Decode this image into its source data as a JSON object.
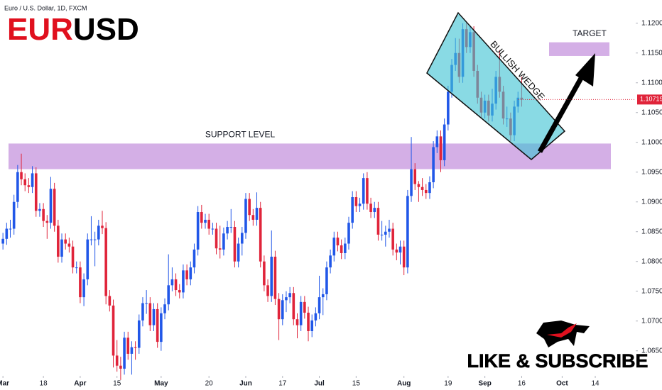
{
  "chart_data": {
    "type": "candlestick",
    "symbol_info": "Euro / U.S. Dollar, 1D, FXCM",
    "title_parts": [
      "EUR",
      "USD"
    ],
    "up_color": "#2157e8",
    "down_color": "#e0243a",
    "candles": [
      [
        1.083,
        1.0848,
        1.082,
        1.0838
      ],
      [
        1.0838,
        1.0865,
        1.0828,
        1.0855
      ],
      [
        1.0855,
        1.087,
        1.084,
        1.0855
      ],
      [
        1.0855,
        1.0912,
        1.0845,
        1.09
      ],
      [
        1.09,
        1.0962,
        1.089,
        1.095
      ],
      [
        1.095,
        1.0981,
        1.0928,
        1.0938
      ],
      [
        1.0938,
        1.0948,
        1.0918,
        1.0928
      ],
      [
        1.0928,
        1.094,
        1.0915,
        1.0925
      ],
      [
        1.0925,
        1.096,
        1.0915,
        1.0948
      ],
      [
        1.0948,
        1.0958,
        1.0875,
        1.0885
      ],
      [
        1.0885,
        1.0898,
        1.0875,
        1.0888
      ],
      [
        1.0888,
        1.0898,
        1.0858,
        1.0868
      ],
      [
        1.0868,
        1.0878,
        1.0838,
        1.0865
      ],
      [
        1.0865,
        1.0942,
        1.0855,
        1.0922
      ],
      [
        1.0922,
        1.0932,
        1.085,
        1.086
      ],
      [
        1.086,
        1.087,
        1.0798,
        1.0808
      ],
      [
        1.0808,
        1.0847,
        1.0798,
        1.0837
      ],
      [
        1.0837,
        1.0847,
        1.082,
        1.083
      ],
      [
        1.083,
        1.084,
        1.0815,
        1.0825
      ],
      [
        1.0825,
        1.0835,
        1.078,
        1.079
      ],
      [
        1.079,
        1.08,
        1.078,
        1.079
      ],
      [
        1.079,
        1.08,
        1.073,
        1.074
      ],
      [
        1.074,
        1.078,
        1.0725,
        1.077
      ],
      [
        1.077,
        1.0847,
        1.076,
        1.0837
      ],
      [
        1.0837,
        1.0876,
        1.0827,
        1.0837
      ],
      [
        1.0837,
        1.085,
        1.0792,
        1.0837
      ],
      [
        1.0837,
        1.087,
        1.0827,
        1.086
      ],
      [
        1.086,
        1.0885,
        1.0846,
        1.0856
      ],
      [
        1.0856,
        1.0866,
        1.0728,
        1.0742
      ],
      [
        1.0742,
        1.0752,
        1.0716,
        1.0726
      ],
      [
        1.0726,
        1.0736,
        1.0622,
        1.0642
      ],
      [
        1.0642,
        1.0668,
        1.0615,
        1.0625
      ],
      [
        1.0625,
        1.064,
        1.0601,
        1.062
      ],
      [
        1.062,
        1.0682,
        1.061,
        1.0672
      ],
      [
        1.0672,
        1.0682,
        1.0635,
        1.0645
      ],
      [
        1.0645,
        1.0666,
        1.061,
        1.0656
      ],
      [
        1.0656,
        1.0666,
        1.0635,
        1.0655
      ],
      [
        1.0655,
        1.0711,
        1.0645,
        1.0701
      ],
      [
        1.0701,
        1.074,
        1.0691,
        1.073
      ],
      [
        1.073,
        1.0752,
        1.0712,
        1.073
      ],
      [
        1.073,
        1.074,
        1.0683,
        1.0693
      ],
      [
        1.0693,
        1.073,
        1.0683,
        1.072
      ],
      [
        1.072,
        1.073,
        1.0655,
        1.0665
      ],
      [
        1.0665,
        1.0723,
        1.065,
        1.0713
      ],
      [
        1.0713,
        1.0738,
        1.0703,
        1.0728
      ],
      [
        1.0728,
        1.0812,
        1.0718,
        1.076
      ],
      [
        1.076,
        1.079,
        1.075,
        1.077
      ],
      [
        1.077,
        1.078,
        1.0742,
        1.0752
      ],
      [
        1.0752,
        1.0762,
        1.0738,
        1.0748
      ],
      [
        1.0748,
        1.0795,
        1.0738,
        1.0785
      ],
      [
        1.0785,
        1.0795,
        1.076,
        1.077
      ],
      [
        1.077,
        1.08,
        1.076,
        1.079
      ],
      [
        1.079,
        1.083,
        1.078,
        1.082
      ],
      [
        1.082,
        1.0893,
        1.081,
        1.0883
      ],
      [
        1.0883,
        1.0895,
        1.0855,
        1.0865
      ],
      [
        1.0865,
        1.088,
        1.0855,
        1.087
      ],
      [
        1.087,
        1.088,
        1.0845,
        1.0855
      ],
      [
        1.0855,
        1.0865,
        1.0845,
        1.0855
      ],
      [
        1.0855,
        1.0865,
        1.0812,
        1.0822
      ],
      [
        1.0822,
        1.086,
        1.0805,
        1.082
      ],
      [
        1.082,
        1.0857,
        1.081,
        1.0847
      ],
      [
        1.0847,
        1.0868,
        1.0837,
        1.0858
      ],
      [
        1.0858,
        1.0888,
        1.0848,
        1.0858
      ],
      [
        1.0858,
        1.0868,
        1.079,
        1.08
      ],
      [
        1.08,
        1.084,
        1.079,
        1.083
      ],
      [
        1.083,
        1.0858,
        1.081,
        1.0848
      ],
      [
        1.0848,
        1.0915,
        1.0838,
        1.0905
      ],
      [
        1.0905,
        1.0915,
        1.0868,
        1.0878
      ],
      [
        1.0878,
        1.0888,
        1.086,
        1.087
      ],
      [
        1.087,
        1.0916,
        1.086,
        1.089
      ],
      [
        1.089,
        1.09,
        1.079,
        1.08
      ],
      [
        1.08,
        1.081,
        1.075,
        1.076
      ],
      [
        1.076,
        1.077,
        1.0732,
        1.0742
      ],
      [
        1.0742,
        1.0852,
        1.0732,
        1.0808
      ],
      [
        1.0808,
        1.0818,
        1.0727,
        1.0737
      ],
      [
        1.0737,
        1.0747,
        1.0668,
        1.0703
      ],
      [
        1.0703,
        1.0745,
        1.0693,
        1.0735
      ],
      [
        1.0735,
        1.075,
        1.0715,
        1.074
      ],
      [
        1.074,
        1.0757,
        1.073,
        1.0747
      ],
      [
        1.0747,
        1.0757,
        1.0693,
        1.0703
      ],
      [
        1.0703,
        1.0713,
        1.0671,
        1.0693
      ],
      [
        1.0693,
        1.0742,
        1.0683,
        1.0732
      ],
      [
        1.0732,
        1.0742,
        1.0704,
        1.0714
      ],
      [
        1.0714,
        1.0724,
        1.0666,
        1.0683
      ],
      [
        1.0683,
        1.0711,
        1.0673,
        1.0701
      ],
      [
        1.0701,
        1.0723,
        1.0691,
        1.0713
      ],
      [
        1.0713,
        1.0776,
        1.0703,
        1.074
      ],
      [
        1.074,
        1.0755,
        1.071,
        1.0745
      ],
      [
        1.0745,
        1.08,
        1.0735,
        1.079
      ],
      [
        1.079,
        1.082,
        1.078,
        1.081
      ],
      [
        1.081,
        1.085,
        1.08,
        1.084
      ],
      [
        1.084,
        1.085,
        1.0817,
        1.0827
      ],
      [
        1.0827,
        1.0837,
        1.0804,
        1.0814
      ],
      [
        1.0814,
        1.084,
        1.0804,
        1.083
      ],
      [
        1.083,
        1.0875,
        1.082,
        1.0865
      ],
      [
        1.0865,
        1.0918,
        1.0855,
        1.0908
      ],
      [
        1.0908,
        1.0918,
        1.0883,
        1.0893
      ],
      [
        1.0893,
        1.0907,
        1.0883,
        1.0897
      ],
      [
        1.0897,
        1.0948,
        1.0887,
        1.094
      ],
      [
        1.094,
        1.095,
        1.0887,
        1.0897
      ],
      [
        1.0897,
        1.0907,
        1.0873,
        1.0883
      ],
      [
        1.0883,
        1.09,
        1.0873,
        1.089
      ],
      [
        1.089,
        1.09,
        1.0835,
        1.0845
      ],
      [
        1.0845,
        1.0868,
        1.0835,
        1.0845
      ],
      [
        1.0845,
        1.086,
        1.0825,
        1.085
      ],
      [
        1.085,
        1.087,
        1.084,
        1.0855
      ],
      [
        1.0855,
        1.0865,
        1.081,
        1.082
      ],
      [
        1.082,
        1.083,
        1.0802,
        1.0815
      ],
      [
        1.0815,
        1.0835,
        1.0795,
        1.0825
      ],
      [
        1.0825,
        1.0835,
        1.0777,
        1.079
      ],
      [
        1.079,
        1.092,
        1.078,
        1.091
      ],
      [
        1.091,
        1.1009,
        1.09,
        1.0955
      ],
      [
        1.0955,
        1.0965,
        1.092,
        1.093
      ],
      [
        1.093,
        1.0935,
        1.09,
        1.0925
      ],
      [
        1.0925,
        1.094,
        1.091,
        1.092
      ],
      [
        1.092,
        1.093,
        1.0905,
        1.0915
      ],
      [
        1.0915,
        1.0943,
        1.0905,
        1.0933
      ],
      [
        1.0933,
        1.1002,
        1.0923,
        1.0992
      ],
      [
        1.0992,
        1.102,
        1.0982,
        1.101
      ],
      [
        1.101,
        1.102,
        1.095,
        1.097
      ],
      [
        1.097,
        1.104,
        1.096,
        1.103
      ],
      [
        1.103,
        1.1095,
        1.102,
        1.1085
      ],
      [
        1.1085,
        1.114,
        1.1075,
        1.113
      ],
      [
        1.113,
        1.1175,
        1.112,
        1.115
      ],
      [
        1.115,
        1.1174,
        1.11,
        1.111
      ],
      [
        1.111,
        1.12,
        1.11,
        1.119
      ],
      [
        1.119,
        1.1202,
        1.115,
        1.116
      ],
      [
        1.116,
        1.1195,
        1.115,
        1.1185
      ],
      [
        1.1185,
        1.1195,
        1.111,
        1.112
      ],
      [
        1.112,
        1.113,
        1.1065,
        1.1075
      ],
      [
        1.1075,
        1.1085,
        1.104,
        1.105
      ],
      [
        1.105,
        1.108,
        1.104,
        1.107
      ],
      [
        1.107,
        1.108,
        1.1035,
        1.1045
      ],
      [
        1.1045,
        1.109,
        1.1035,
        1.1065
      ],
      [
        1.1065,
        1.112,
        1.1055,
        1.111
      ],
      [
        1.111,
        1.1155,
        1.1075,
        1.1085
      ],
      [
        1.1085,
        1.1095,
        1.103,
        1.104
      ],
      [
        1.104,
        1.106,
        1.1026,
        1.104
      ],
      [
        1.104,
        1.105,
        1.1002,
        1.1012
      ],
      [
        1.1012,
        1.107,
        1.1002,
        1.106
      ],
      [
        1.106,
        1.1085,
        1.105,
        1.1075
      ],
      [
        1.1075,
        1.111,
        1.106,
        1.1072
      ]
    ],
    "xlim": [
      -0.8,
      172
    ],
    "xticks": [
      {
        "value": 0,
        "label": "Mar"
      },
      {
        "value": 11,
        "label": "18"
      },
      {
        "value": 21,
        "label": "Apr"
      },
      {
        "value": 31,
        "label": "15"
      },
      {
        "value": 43,
        "label": "May"
      },
      {
        "value": 56,
        "label": "20"
      },
      {
        "value": 66,
        "label": "Jun"
      },
      {
        "value": 76,
        "label": "17"
      },
      {
        "value": 86,
        "label": "Jul"
      },
      {
        "value": 96,
        "label": "15"
      },
      {
        "value": 109,
        "label": "Aug"
      },
      {
        "value": 121,
        "label": "19"
      },
      {
        "value": 131,
        "label": "Sep"
      },
      {
        "value": 141,
        "label": "16"
      },
      {
        "value": 152,
        "label": "Oct"
      },
      {
        "value": 161,
        "label": "14"
      }
    ],
    "ylim": [
      1.0608,
      1.1239
    ],
    "yticks": [
      {
        "value": 1.12,
        "label": "1.12000"
      },
      {
        "value": 1.115,
        "label": "1.11500"
      },
      {
        "value": 1.11,
        "label": "1.11000"
      },
      {
        "value": 1.105,
        "label": "1.10500"
      },
      {
        "value": 1.1,
        "label": "1.10000"
      },
      {
        "value": 1.095,
        "label": "1.09500"
      },
      {
        "value": 1.09,
        "label": "1.09000"
      },
      {
        "value": 1.085,
        "label": "1.08500"
      },
      {
        "value": 1.08,
        "label": "1.08000"
      },
      {
        "value": 1.075,
        "label": "1.07500"
      },
      {
        "value": 1.07,
        "label": "1.07000"
      },
      {
        "value": 1.065,
        "label": "1.06500"
      }
    ],
    "last_price": 1.10719,
    "zones": [
      {
        "label": "SUPPORT LEVEL",
        "range": [
          1.0955,
          1.0998
        ]
      },
      {
        "label": "TARGET",
        "range": [
          1.1145,
          1.1168
        ]
      }
    ],
    "pattern_label": "BULLISH WEDGE",
    "cta": "LIKE & SUBSCRIBE"
  }
}
